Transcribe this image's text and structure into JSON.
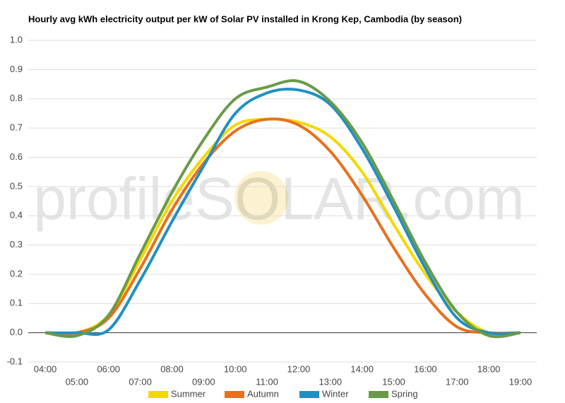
{
  "chart_data": {
    "type": "line",
    "title": "Hourly avg kWh electricity output per kW of Solar PV installed in Krong Kep, Cambodia (by season)",
    "watermark": "profileSOLAR.com",
    "categories": [
      "04:00",
      "05:00",
      "06:00",
      "07:00",
      "08:00",
      "09:00",
      "10:00",
      "11:00",
      "12:00",
      "13:00",
      "14:00",
      "15:00",
      "16:00",
      "17:00",
      "18:00",
      "19:00"
    ],
    "series": [
      {
        "name": "Summer",
        "color": "#f5d800",
        "values": [
          0,
          0,
          0.06,
          0.25,
          0.45,
          0.6,
          0.71,
          0.73,
          0.72,
          0.67,
          0.55,
          0.37,
          0.2,
          0.07,
          0,
          0
        ]
      },
      {
        "name": "Autumn",
        "color": "#e8701e",
        "values": [
          0,
          0,
          0.05,
          0.22,
          0.42,
          0.58,
          0.69,
          0.73,
          0.71,
          0.62,
          0.47,
          0.29,
          0.13,
          0.02,
          0,
          0
        ]
      },
      {
        "name": "Winter",
        "color": "#2190c0",
        "values": [
          0,
          0,
          0.01,
          0.18,
          0.38,
          0.57,
          0.75,
          0.82,
          0.83,
          0.78,
          0.63,
          0.43,
          0.22,
          0.05,
          0,
          0
        ]
      },
      {
        "name": "Spring",
        "color": "#6a9a48",
        "values": [
          0,
          -0.01,
          0.06,
          0.27,
          0.48,
          0.66,
          0.8,
          0.84,
          0.86,
          0.79,
          0.65,
          0.45,
          0.24,
          0.07,
          -0.01,
          0
        ]
      }
    ],
    "ylim": [
      -0.1,
      1.0
    ],
    "yticks": [
      -0.1,
      {
        "value": 0,
        "label": "0.0"
      },
      0.1,
      0.2,
      0.3,
      0.4,
      0.5,
      0.6,
      0.7,
      0.8,
      0.9,
      {
        "value": 1,
        "label": "1.0"
      }
    ],
    "grid": true,
    "legend": "bottom"
  }
}
